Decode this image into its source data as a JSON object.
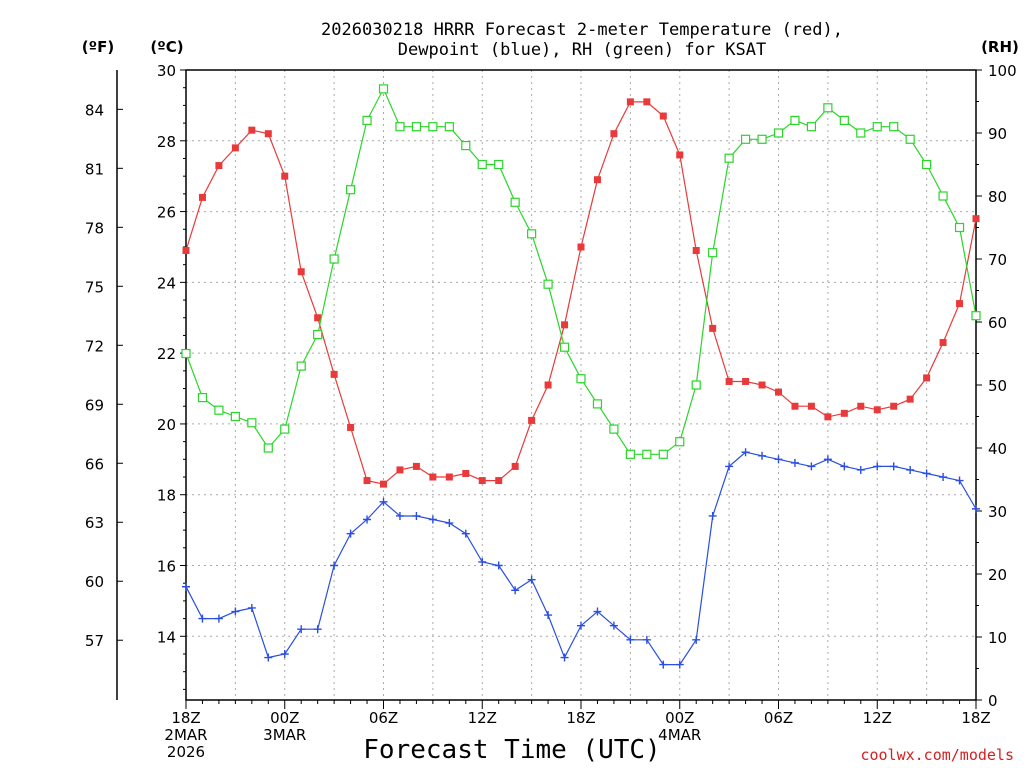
{
  "chart_data": {
    "type": "line",
    "title_line1": "2026030218 HRRR Forecast 2-meter Temperature (red),",
    "title_line2": "Dewpoint (blue), RH (green) for KSAT",
    "xlabel": "Forecast Time (UTC)",
    "credit": "coolwx.com/models",
    "units": {
      "fahrenheit": "(ºF)",
      "celsius": "(ºC)",
      "rh": "(RH)"
    },
    "x_range_hours": [
      0,
      48
    ],
    "y_celsius_range": [
      12.2,
      30
    ],
    "y_rh_range": [
      0,
      100
    ],
    "x_ticks": [
      {
        "hour": 0,
        "lines": [
          "18Z",
          "2MAR",
          "2026"
        ]
      },
      {
        "hour": 6,
        "lines": [
          "00Z",
          "3MAR"
        ]
      },
      {
        "hour": 12,
        "lines": [
          "06Z"
        ]
      },
      {
        "hour": 18,
        "lines": [
          "12Z"
        ]
      },
      {
        "hour": 24,
        "lines": [
          "18Z"
        ]
      },
      {
        "hour": 30,
        "lines": [
          "00Z",
          "4MAR"
        ]
      },
      {
        "hour": 36,
        "lines": [
          "06Z"
        ]
      },
      {
        "hour": 42,
        "lines": [
          "12Z"
        ]
      },
      {
        "hour": 48,
        "lines": [
          "18Z"
        ]
      }
    ],
    "y_ticks_celsius": [
      "14",
      "16",
      "18",
      "20",
      "22",
      "24",
      "26",
      "28",
      "30"
    ],
    "y_ticks_fahrenheit": [
      "57",
      "60",
      "63",
      "66",
      "69",
      "72",
      "75",
      "78",
      "81",
      "84"
    ],
    "y_ticks_rh": [
      "0",
      "10",
      "20",
      "30",
      "40",
      "50",
      "60",
      "70",
      "80",
      "90",
      "100"
    ],
    "series": [
      {
        "name": "Temperature",
        "axis": "celsius",
        "color": "#e83a3a",
        "marker": "filled-square",
        "values": [
          24.9,
          26.4,
          27.3,
          27.8,
          28.3,
          28.2,
          27.0,
          24.3,
          23.0,
          21.4,
          19.9,
          18.4,
          18.3,
          18.7,
          18.8,
          18.5,
          18.5,
          18.6,
          18.4,
          18.4,
          18.8,
          20.1,
          21.1,
          22.8,
          25.0,
          26.9,
          28.2,
          29.1,
          29.1,
          28.7,
          27.6,
          24.9,
          22.7,
          21.2,
          21.2,
          21.1,
          20.9,
          20.5,
          20.5,
          20.2,
          20.3,
          20.5,
          20.4,
          20.5,
          20.7,
          21.3,
          22.3,
          23.4,
          25.8
        ]
      },
      {
        "name": "Dewpoint",
        "axis": "celsius",
        "color": "#2a4fe0",
        "marker": "plus",
        "values": [
          15.4,
          14.5,
          14.5,
          14.7,
          14.8,
          13.4,
          13.5,
          14.2,
          14.2,
          16.0,
          16.9,
          17.3,
          17.8,
          17.4,
          17.4,
          17.3,
          17.2,
          16.9,
          16.1,
          16.0,
          15.3,
          15.6,
          14.6,
          13.4,
          14.3,
          14.7,
          14.3,
          13.9,
          13.9,
          13.2,
          13.2,
          13.9,
          17.4,
          18.8,
          19.2,
          19.1,
          19.0,
          18.9,
          18.8,
          19.0,
          18.8,
          18.7,
          18.8,
          18.8,
          18.7,
          18.6,
          18.5,
          18.4,
          17.6
        ]
      },
      {
        "name": "Relative Humidity",
        "axis": "rh",
        "color": "#2ad62a",
        "marker": "open-square",
        "values": [
          55,
          48,
          46,
          45,
          44,
          40,
          43,
          53,
          58,
          70,
          81,
          92,
          97,
          91,
          91,
          91,
          91,
          88,
          85,
          85,
          79,
          74,
          66,
          56,
          51,
          47,
          43,
          39,
          39,
          39,
          41,
          50,
          71,
          86,
          89,
          89,
          90,
          92,
          91,
          94,
          92,
          90,
          91,
          91,
          89,
          85,
          80,
          75,
          61
        ]
      }
    ]
  }
}
